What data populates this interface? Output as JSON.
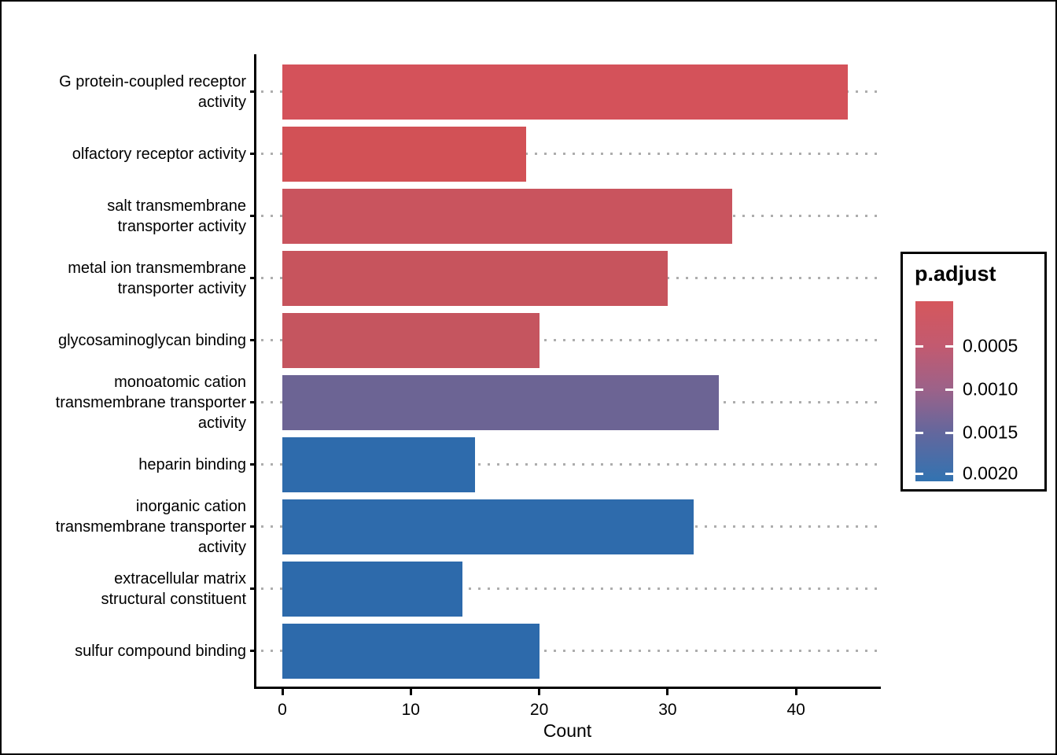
{
  "chart_data": {
    "type": "bar",
    "orientation": "horizontal",
    "title": "",
    "xlabel": "Count",
    "xlim": [
      0,
      46.6
    ],
    "x_ticks": [
      0,
      10,
      20,
      30,
      40
    ],
    "grid": "dotted-horizontal",
    "categories": [
      "G protein-coupled receptor\nactivity",
      "olfactory receptor activity",
      "salt transmembrane\ntransporter activity",
      "metal ion transmembrane\ntransporter activity",
      "glycosaminoglycan binding",
      "monoatomic cation\ntransmembrane transporter\nactivity",
      "heparin binding",
      "inorganic cation\ntransmembrane transporter\nactivity",
      "extracellular matrix\nstructural constituent",
      "sulfur compound binding"
    ],
    "values": [
      44,
      19,
      35,
      30,
      20,
      34,
      15,
      32,
      14,
      20
    ],
    "bar_colors": [
      "#d4525a",
      "#d25156",
      "#c9545e",
      "#c7545d",
      "#c5555f",
      "#6c6494",
      "#2e6bac",
      "#2e6bac",
      "#2d6aab",
      "#2d6aab"
    ],
    "legend": {
      "title": "p.adjust",
      "position": "right",
      "tick_labels": [
        "0.0005",
        "0.0010",
        "0.0015",
        "0.0020"
      ],
      "tick_positions": [
        0.249,
        0.489,
        0.729,
        0.956
      ],
      "gradient_stops": [
        {
          "pos": 0.0,
          "color": "#d5575c"
        },
        {
          "pos": 0.25,
          "color": "#c25a70"
        },
        {
          "pos": 0.49,
          "color": "#9c6289"
        },
        {
          "pos": 0.73,
          "color": "#63679d"
        },
        {
          "pos": 1.0,
          "color": "#3273b1"
        }
      ]
    },
    "colors": {
      "axis": "#000000",
      "gridline": "#adadad",
      "background": "#ffffff"
    }
  }
}
